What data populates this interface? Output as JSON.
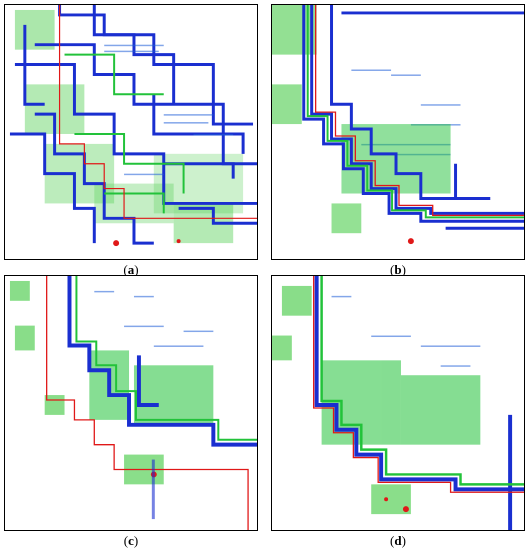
{
  "figure": {
    "panels": [
      {
        "id": "a",
        "caption_prefix": "(",
        "caption_letter": "a",
        "caption_suffix": ")"
      },
      {
        "id": "b",
        "caption_prefix": "(",
        "caption_letter": "b",
        "caption_suffix": ")"
      },
      {
        "id": "c",
        "caption_prefix": "(",
        "caption_letter": "c",
        "caption_suffix": ")"
      },
      {
        "id": "d",
        "caption_prefix": "(",
        "caption_letter": "d",
        "caption_suffix": ")"
      }
    ],
    "colors": {
      "blue": "#1a2fd0",
      "green": "#22c23a",
      "lightgreen": "#7ad84a",
      "red": "#e01818",
      "dots": "#1f5fd8"
    }
  }
}
